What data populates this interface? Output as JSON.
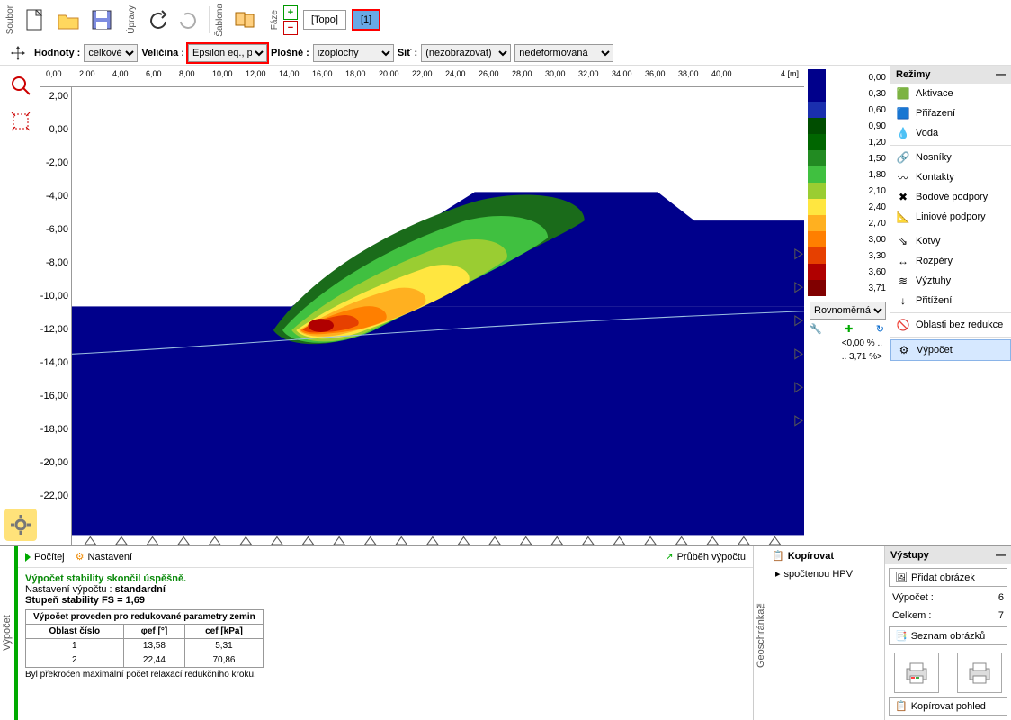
{
  "toolbar": {
    "labels": {
      "soubor": "Soubor",
      "upravy": "Úpravy",
      "sablona": "Šablona",
      "faze": "Fáze"
    },
    "phases": {
      "topo": "[Topo]",
      "p1": "[1]"
    },
    "plus": "+",
    "minus": "−"
  },
  "filter": {
    "hodnoty_lbl": "Hodnoty :",
    "hodnoty_val": "celkové",
    "velicina_lbl": "Veličina :",
    "velicina_val": "Epsilon eq., pl.",
    "plosne_lbl": "Plošně :",
    "plosne_val": "izoplochy",
    "sit_lbl": "Síť :",
    "sit_val": "(nezobrazovat)",
    "deform_val": "nedeformovaná"
  },
  "ruler_x": [
    "0,00",
    "2,00",
    "4,00",
    "6,00",
    "8,00",
    "10,00",
    "12,00",
    "14,00",
    "16,00",
    "18,00",
    "20,00",
    "22,00",
    "24,00",
    "26,00",
    "28,00",
    "30,00",
    "32,00",
    "34,00",
    "36,00",
    "38,00",
    "40,00"
  ],
  "ruler_x_unit": "4   [m]",
  "ruler_y": [
    "2,00",
    "0,00",
    "-2,00",
    "-4,00",
    "-6,00",
    "-8,00",
    "-10,00",
    "-12,00",
    "-14,00",
    "-16,00",
    "-18,00",
    "-20,00",
    "-22,00"
  ],
  "legend": {
    "values": [
      "0,00",
      "0,30",
      "0,60",
      "0,90",
      "1,20",
      "1,50",
      "1,80",
      "2,10",
      "2,40",
      "2,70",
      "3,00",
      "3,30",
      "3,60",
      "3,71"
    ],
    "colors": [
      "#00008b",
      "#00008b",
      "#1a2fae",
      "#004d00",
      "#006600",
      "#228b22",
      "#40c040",
      "#9acd32",
      "#ffe640",
      "#ffb020",
      "#ff7f00",
      "#e64000",
      "#b00000",
      "#800000"
    ]
  },
  "scale": {
    "uniform": "Rovnoměrná",
    "low": "<0,00 % ..",
    "high": ".. 3,71 %>"
  },
  "modes": {
    "title": "Režimy",
    "items": [
      {
        "label": "Aktivace",
        "icon": "🟩"
      },
      {
        "label": "Přiřazení",
        "icon": "🟦"
      },
      {
        "label": "Voda",
        "icon": "💧"
      },
      {
        "label": "Nosníky",
        "icon": "🔗"
      },
      {
        "label": "Kontakty",
        "icon": "〰"
      },
      {
        "label": "Bodové podpory",
        "icon": "✖"
      },
      {
        "label": "Liniové podpory",
        "icon": "📐"
      },
      {
        "label": "Kotvy",
        "icon": "⇘"
      },
      {
        "label": "Rozpěry",
        "icon": "↔"
      },
      {
        "label": "Výztuhy",
        "icon": "≋"
      },
      {
        "label": "Přitížení",
        "icon": "↓"
      },
      {
        "label": "Oblasti bez redukce",
        "icon": "🚫"
      },
      {
        "label": "Výpočet",
        "icon": "⚙",
        "selected": true
      }
    ]
  },
  "results": {
    "pocitej": "Počítej",
    "nastaveni": "Nastavení",
    "prubeh": "Průběh výpočtu",
    "ok": "Výpočet stability skončil úspěšně.",
    "setting_lbl": "Nastavení výpočtu :",
    "setting_val": "standardní",
    "fs_lbl": "Stupeň stability FS = 1,69",
    "tbl_title": "Výpočet proveden pro redukované parametry zemin",
    "cols": [
      "Oblast číslo",
      "φef [°]",
      "cef [kPa]"
    ],
    "rows": [
      [
        "1",
        "13,58",
        "5,31"
      ],
      [
        "2",
        "22,44",
        "70,86"
      ]
    ],
    "note": "Byl překročen maximální počet relaxací redukčního kroku."
  },
  "copy": {
    "title": "Kopírovat",
    "item": "spočtenou HPV"
  },
  "outputs": {
    "title": "Výstupy",
    "add": "Přidat obrázek",
    "vypocet_lbl": "Výpočet :",
    "vypocet_val": "6",
    "celkem_lbl": "Celkem :",
    "celkem_val": "7",
    "seznam": "Seznam obrázků",
    "kopir": "Kopírovat pohled"
  },
  "side": {
    "geoschrauka": "Geoschránka™",
    "vypocet": "Výpočet"
  }
}
